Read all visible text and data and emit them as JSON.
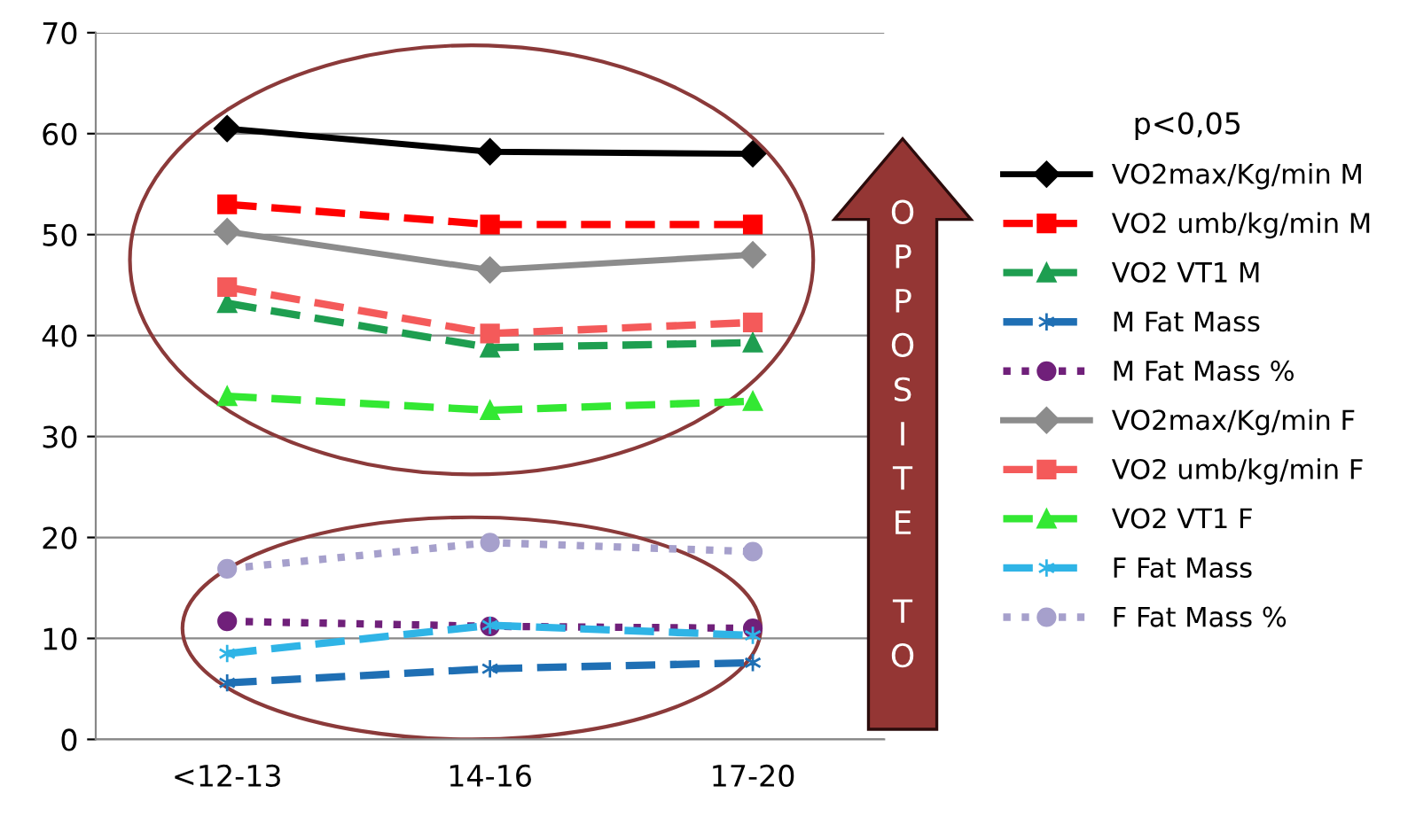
{
  "chart_data": {
    "type": "line",
    "categories": [
      "<12-13",
      "14-16",
      "17-20"
    ],
    "ylim": [
      0,
      70
    ],
    "yticks": [
      0,
      10,
      20,
      30,
      40,
      50,
      60,
      70
    ],
    "grid": "y",
    "legend": "right",
    "legend_title": "p<0,05",
    "annotations": [
      "OPPOSITE TO"
    ],
    "series": [
      {
        "name": "VO2max/Kg/min M",
        "color": "#000000",
        "marker": "diamond",
        "line_style": "solid",
        "values": [
          60.5,
          58.2,
          58.0
        ]
      },
      {
        "name": "VO2 umb/kg/min M",
        "color": "#ff0000",
        "marker": "square",
        "line_style": "dashed",
        "values": [
          53.0,
          51.0,
          51.0
        ]
      },
      {
        "name": "VO2 VT1 M",
        "color": "#1e9e50",
        "marker": "triangle",
        "line_style": "dashed",
        "values": [
          43.2,
          38.8,
          39.3
        ]
      },
      {
        "name": "M Fat Mass",
        "color": "#1f6fb4",
        "marker": "cross",
        "line_style": "dashed",
        "values": [
          5.6,
          7.0,
          7.6
        ]
      },
      {
        "name": "M Fat Mass %",
        "color": "#70207a",
        "marker": "circle",
        "line_style": "dotted",
        "values": [
          11.7,
          11.2,
          11.0
        ]
      },
      {
        "name": "VO2max/Kg/min F",
        "color": "#8c8c8c",
        "marker": "diamond",
        "line_style": "solid",
        "values": [
          50.3,
          46.5,
          48.0
        ]
      },
      {
        "name": "VO2 umb/kg/min F",
        "color": "#f45a5a",
        "marker": "square",
        "line_style": "dashed",
        "values": [
          44.8,
          40.2,
          41.3
        ]
      },
      {
        "name": "VO2 VT1 F",
        "color": "#33e833",
        "marker": "triangle",
        "line_style": "dashed",
        "values": [
          34.0,
          32.6,
          33.5
        ]
      },
      {
        "name": "F Fat Mass",
        "color": "#2fb4e6",
        "marker": "cross",
        "line_style": "dashed",
        "values": [
          8.5,
          11.3,
          10.3
        ]
      },
      {
        "name": "F Fat Mass %",
        "color": "#a6a0cc",
        "marker": "circle",
        "line_style": "dotted",
        "values": [
          16.9,
          19.5,
          18.6
        ]
      }
    ]
  }
}
